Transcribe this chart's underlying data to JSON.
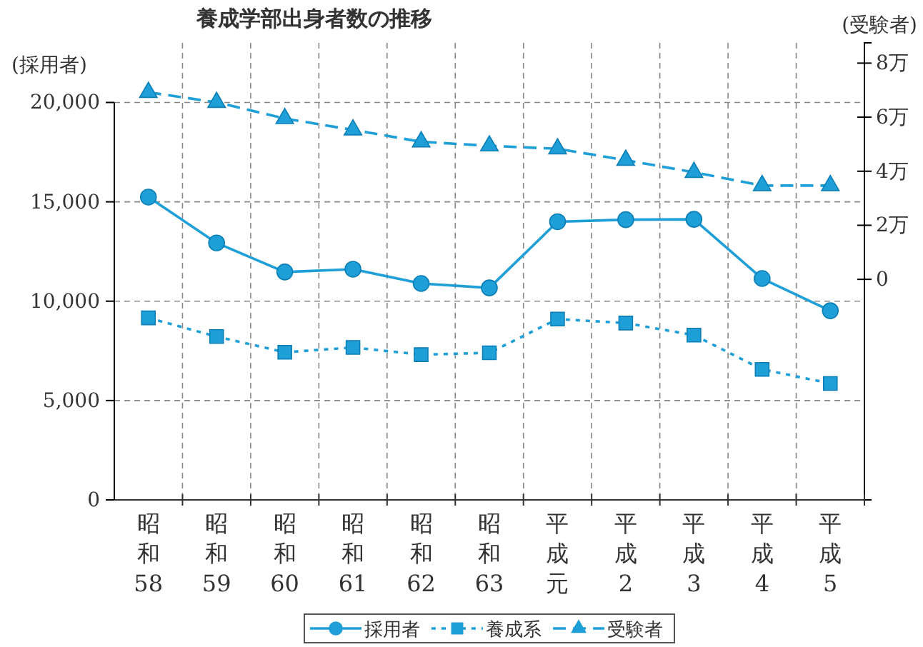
{
  "chart_data": {
    "type": "line",
    "title": "養成学部出身者数の推移",
    "ylabel": "(採用者)",
    "y2label": "(受験者)",
    "categories": [
      "昭和58",
      "昭和59",
      "昭和60",
      "昭和61",
      "昭和62",
      "昭和63",
      "平成元",
      "平成2",
      "平成3",
      "平成4",
      "平成5"
    ],
    "series": [
      {
        "name": "採用者",
        "color": "#1e9fd8",
        "marker": "circle",
        "line_style": "solid",
        "values": [
          15240,
          12930,
          11470,
          11610,
          10890,
          10670,
          14000,
          14100,
          14120,
          11140,
          9520
        ]
      },
      {
        "name": "養成系",
        "color": "#1e9fd8",
        "marker": "square",
        "line_style": "dotted",
        "values": [
          9160,
          8220,
          7430,
          7670,
          7310,
          7400,
          9100,
          8900,
          8290,
          6570,
          5860
        ]
      },
      {
        "name": "受験者",
        "color": "#1e9fd8",
        "marker": "triangle",
        "line_style": "dashed",
        "axis": "y2",
        "values": [
          6.92,
          6.55,
          5.95,
          5.53,
          5.09,
          4.94,
          4.83,
          4.41,
          3.96,
          3.47,
          3.47
        ]
      }
    ],
    "ylim": [
      0,
      23000
    ],
    "yticks": [
      0,
      {
        "value": 5000,
        "label": "5,000"
      },
      {
        "value": 10000,
        "label": "10,000"
      },
      {
        "value": 15000,
        "label": "15,000"
      },
      {
        "value": 20000,
        "label": "20,000"
      }
    ],
    "y2lim": [
      -8.16,
      8.75
    ],
    "y2ticks": [
      0,
      {
        "value": 2,
        "label": "2万"
      },
      {
        "value": 4,
        "label": "4万"
      },
      {
        "value": 6,
        "label": "6万"
      },
      {
        "value": 8,
        "label": "8万"
      }
    ],
    "grid": true,
    "legend": "bottom"
  }
}
